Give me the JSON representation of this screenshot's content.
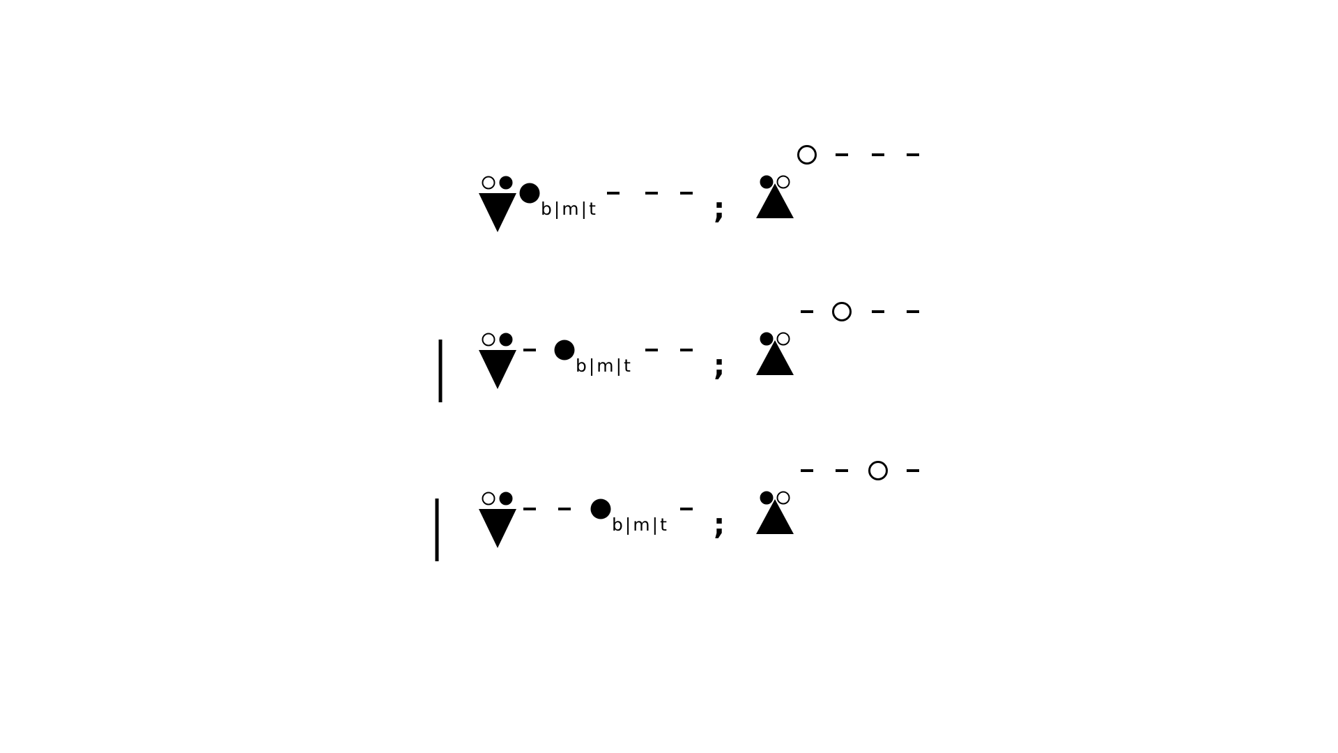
{
  "rows": [
    {
      "bar": false,
      "left": {
        "pair": [
          "hollow",
          "filled"
        ],
        "triangle": "down",
        "line": [
          "dot",
          "dash",
          "dash",
          "dash"
        ],
        "label": "b|m|t"
      },
      "separator": ";",
      "right": {
        "pair": [
          "filled",
          "hollow"
        ],
        "triangle": "up",
        "line": [
          "circle",
          "dash",
          "dash",
          "dash"
        ]
      }
    },
    {
      "bar": true,
      "left": {
        "pair": [
          "hollow",
          "filled"
        ],
        "triangle": "down",
        "line": [
          "dash",
          "dot",
          "dash",
          "dash"
        ],
        "label": "b|m|t"
      },
      "separator": ";",
      "right": {
        "pair": [
          "filled",
          "hollow"
        ],
        "triangle": "up",
        "line": [
          "dash",
          "circle",
          "dash",
          "dash"
        ]
      }
    },
    {
      "bar": true,
      "left": {
        "pair": [
          "hollow",
          "filled"
        ],
        "triangle": "down",
        "line": [
          "dash",
          "dash",
          "dot",
          "dash"
        ],
        "label": "b|m|t"
      },
      "separator": ";",
      "right": {
        "pair": [
          "filled",
          "hollow"
        ],
        "triangle": "up",
        "line": [
          "dash",
          "dash",
          "circle",
          "dash"
        ]
      }
    }
  ]
}
